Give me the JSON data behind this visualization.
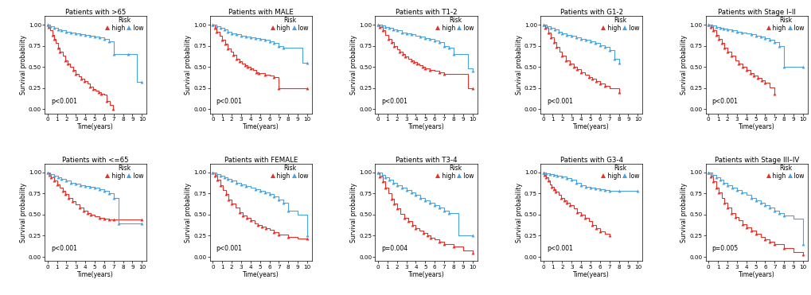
{
  "panels": [
    {
      "title": "Patients with >65",
      "pvalue": "p<0.001",
      "row": 0,
      "col": 0
    },
    {
      "title": "Patients with MALE",
      "pvalue": "p<0.001",
      "row": 0,
      "col": 1
    },
    {
      "title": "Patients with T1-2",
      "pvalue": "p<0.001",
      "row": 0,
      "col": 2
    },
    {
      "title": "Patients with G1-2",
      "pvalue": "p<0.001",
      "row": 0,
      "col": 3
    },
    {
      "title": "Patients with Stage I–II",
      "pvalue": "p<0.001",
      "row": 0,
      "col": 4
    },
    {
      "title": "Patients with <=65",
      "pvalue": "p<0.001",
      "row": 1,
      "col": 0
    },
    {
      "title": "Patients with FEMALE",
      "pvalue": "p<0.001",
      "row": 1,
      "col": 1
    },
    {
      "title": "Patients with T3-4",
      "pvalue": "p=0.004",
      "row": 1,
      "col": 2
    },
    {
      "title": "Patients with G3-4",
      "pvalue": "p<0.001",
      "row": 1,
      "col": 3
    },
    {
      "title": "Patients with Stage III–IV",
      "pvalue": "p=0.005",
      "row": 1,
      "col": 4
    }
  ],
  "color_high": "#E8302A",
  "color_low": "#4AA3DF",
  "legend_label_high": "high",
  "legend_label_low": "low",
  "legend_prefix": "Risk",
  "ylabel": "Survival probability",
  "xlabel": "Time(years)",
  "yticks": [
    0.0,
    0.25,
    0.5,
    0.75,
    1.0
  ],
  "xticks": [
    0,
    1,
    2,
    3,
    4,
    5,
    6,
    7,
    8,
    9,
    10
  ],
  "xlim": [
    -0.3,
    10.5
  ],
  "ylim": [
    -0.05,
    1.1
  ],
  "curves": {
    "0_0": {
      "high_x": [
        0,
        0.15,
        0.3,
        0.5,
        0.7,
        0.9,
        1.1,
        1.3,
        1.6,
        1.9,
        2.1,
        2.4,
        2.7,
        3.0,
        3.3,
        3.6,
        3.9,
        4.2,
        4.5,
        4.8,
        5.1,
        5.4,
        5.7,
        6.0,
        6.3,
        6.6,
        6.9
      ],
      "high_y": [
        1.0,
        0.97,
        0.93,
        0.88,
        0.83,
        0.78,
        0.73,
        0.68,
        0.63,
        0.58,
        0.54,
        0.5,
        0.46,
        0.42,
        0.39,
        0.36,
        0.33,
        0.3,
        0.27,
        0.24,
        0.22,
        0.2,
        0.18,
        0.17,
        0.1,
        0.05,
        0.0
      ],
      "low_x": [
        0,
        0.3,
        0.7,
        1.1,
        1.5,
        2.0,
        2.5,
        3.0,
        3.5,
        4.0,
        4.5,
        5.0,
        5.5,
        6.0,
        6.5,
        7.0,
        8.5,
        9.5,
        10.0
      ],
      "low_y": [
        1.0,
        0.98,
        0.96,
        0.94,
        0.93,
        0.92,
        0.91,
        0.9,
        0.89,
        0.88,
        0.87,
        0.86,
        0.85,
        0.83,
        0.8,
        0.65,
        0.65,
        0.32,
        0.32
      ]
    },
    "0_1": {
      "high_x": [
        0,
        0.2,
        0.4,
        0.7,
        1.0,
        1.3,
        1.6,
        1.9,
        2.2,
        2.5,
        2.8,
        3.1,
        3.4,
        3.7,
        4.0,
        4.3,
        4.6,
        4.9,
        5.5,
        6.0,
        6.5,
        7.0,
        9.5,
        10.0
      ],
      "high_y": [
        1.0,
        0.96,
        0.92,
        0.87,
        0.82,
        0.77,
        0.72,
        0.68,
        0.64,
        0.6,
        0.57,
        0.54,
        0.52,
        0.5,
        0.48,
        0.46,
        0.44,
        0.43,
        0.41,
        0.4,
        0.38,
        0.25,
        0.25,
        0.25
      ],
      "low_x": [
        0,
        0.4,
        0.8,
        1.2,
        1.6,
        2.0,
        2.5,
        3.0,
        3.5,
        4.0,
        4.5,
        5.0,
        5.5,
        6.0,
        6.5,
        7.0,
        7.5,
        9.5,
        10.0
      ],
      "low_y": [
        1.0,
        0.98,
        0.96,
        0.94,
        0.92,
        0.9,
        0.89,
        0.87,
        0.86,
        0.85,
        0.84,
        0.83,
        0.82,
        0.8,
        0.78,
        0.75,
        0.73,
        0.55,
        0.55
      ]
    },
    "0_2": {
      "high_x": [
        0,
        0.2,
        0.5,
        0.8,
        1.1,
        1.4,
        1.7,
        2.0,
        2.3,
        2.6,
        2.9,
        3.2,
        3.5,
        3.8,
        4.1,
        4.4,
        4.7,
        5.0,
        5.5,
        6.0,
        6.5,
        7.0,
        9.5,
        10.0
      ],
      "high_y": [
        1.0,
        0.97,
        0.93,
        0.88,
        0.83,
        0.79,
        0.75,
        0.71,
        0.68,
        0.65,
        0.62,
        0.6,
        0.58,
        0.56,
        0.54,
        0.52,
        0.5,
        0.48,
        0.46,
        0.45,
        0.44,
        0.42,
        0.25,
        0.25
      ],
      "low_x": [
        0,
        0.4,
        0.8,
        1.2,
        1.6,
        2.0,
        2.5,
        3.0,
        3.5,
        4.0,
        4.5,
        5.0,
        5.5,
        6.0,
        6.5,
        7.0,
        7.5,
        8.0,
        9.5,
        10.0
      ],
      "low_y": [
        1.0,
        0.99,
        0.97,
        0.96,
        0.94,
        0.93,
        0.91,
        0.9,
        0.89,
        0.87,
        0.86,
        0.84,
        0.83,
        0.81,
        0.79,
        0.75,
        0.73,
        0.65,
        0.48,
        0.45
      ]
    },
    "0_3": {
      "high_x": [
        0,
        0.2,
        0.5,
        0.8,
        1.1,
        1.4,
        1.7,
        2.0,
        2.4,
        2.8,
        3.2,
        3.6,
        4.0,
        4.4,
        4.8,
        5.2,
        5.6,
        6.0,
        6.5,
        7.0,
        8.0
      ],
      "high_y": [
        1.0,
        0.96,
        0.91,
        0.85,
        0.79,
        0.74,
        0.68,
        0.63,
        0.58,
        0.54,
        0.5,
        0.47,
        0.44,
        0.41,
        0.38,
        0.36,
        0.33,
        0.3,
        0.28,
        0.25,
        0.2
      ],
      "low_x": [
        0,
        0.4,
        0.8,
        1.2,
        1.6,
        2.0,
        2.5,
        3.0,
        3.5,
        4.0,
        4.5,
        5.0,
        5.5,
        6.0,
        6.5,
        7.0,
        7.5,
        8.0
      ],
      "low_y": [
        1.0,
        0.98,
        0.96,
        0.94,
        0.92,
        0.9,
        0.88,
        0.87,
        0.85,
        0.83,
        0.82,
        0.8,
        0.78,
        0.76,
        0.74,
        0.7,
        0.6,
        0.55
      ]
    },
    "0_4": {
      "high_x": [
        0,
        0.2,
        0.5,
        0.8,
        1.1,
        1.4,
        1.7,
        2.0,
        2.4,
        2.8,
        3.2,
        3.6,
        4.0,
        4.4,
        4.8,
        5.2,
        5.6,
        6.0,
        6.5,
        7.0
      ],
      "high_y": [
        1.0,
        0.97,
        0.93,
        0.88,
        0.83,
        0.78,
        0.73,
        0.68,
        0.63,
        0.58,
        0.54,
        0.5,
        0.46,
        0.43,
        0.4,
        0.37,
        0.34,
        0.31,
        0.26,
        0.18
      ],
      "low_x": [
        0,
        0.4,
        0.8,
        1.2,
        1.6,
        2.0,
        2.5,
        3.0,
        3.5,
        4.0,
        4.5,
        5.0,
        5.5,
        6.0,
        6.5,
        7.0,
        7.5,
        8.0,
        9.5,
        10.0
      ],
      "low_y": [
        1.0,
        0.99,
        0.97,
        0.96,
        0.95,
        0.94,
        0.93,
        0.92,
        0.91,
        0.9,
        0.89,
        0.87,
        0.86,
        0.84,
        0.82,
        0.79,
        0.75,
        0.5,
        0.5,
        0.5
      ]
    },
    "1_0": {
      "high_x": [
        0,
        0.2,
        0.4,
        0.7,
        1.0,
        1.3,
        1.6,
        1.9,
        2.2,
        2.6,
        3.0,
        3.4,
        3.8,
        4.2,
        4.6,
        5.0,
        5.5,
        6.0,
        6.5,
        7.0,
        7.5,
        10.0
      ],
      "high_y": [
        1.0,
        0.97,
        0.94,
        0.9,
        0.86,
        0.82,
        0.78,
        0.74,
        0.7,
        0.66,
        0.62,
        0.58,
        0.55,
        0.52,
        0.5,
        0.48,
        0.46,
        0.45,
        0.44,
        0.44,
        0.44,
        0.44
      ],
      "low_x": [
        0,
        0.3,
        0.7,
        1.1,
        1.5,
        2.0,
        2.5,
        3.0,
        3.5,
        4.0,
        4.5,
        5.0,
        5.5,
        6.0,
        6.5,
        7.0,
        7.5,
        10.0
      ],
      "low_y": [
        1.0,
        0.98,
        0.96,
        0.94,
        0.92,
        0.9,
        0.88,
        0.87,
        0.85,
        0.84,
        0.83,
        0.82,
        0.8,
        0.78,
        0.75,
        0.7,
        0.4,
        0.4
      ]
    },
    "1_1": {
      "high_x": [
        0,
        0.2,
        0.5,
        0.8,
        1.1,
        1.4,
        1.7,
        2.0,
        2.4,
        2.8,
        3.2,
        3.6,
        4.0,
        4.4,
        4.8,
        5.2,
        5.6,
        6.0,
        6.5,
        7.0,
        8.0,
        9.0,
        10.0
      ],
      "high_y": [
        1.0,
        0.96,
        0.91,
        0.85,
        0.79,
        0.74,
        0.68,
        0.63,
        0.58,
        0.53,
        0.49,
        0.46,
        0.43,
        0.4,
        0.38,
        0.36,
        0.34,
        0.32,
        0.29,
        0.26,
        0.24,
        0.22,
        0.22
      ],
      "low_x": [
        0,
        0.4,
        0.8,
        1.2,
        1.6,
        2.0,
        2.5,
        3.0,
        3.5,
        4.0,
        4.5,
        5.0,
        5.5,
        6.0,
        6.5,
        7.0,
        7.5,
        8.0,
        9.0,
        10.0
      ],
      "low_y": [
        1.0,
        0.98,
        0.96,
        0.94,
        0.92,
        0.9,
        0.88,
        0.86,
        0.84,
        0.82,
        0.8,
        0.78,
        0.76,
        0.74,
        0.72,
        0.68,
        0.64,
        0.55,
        0.5,
        0.25
      ]
    },
    "1_2": {
      "high_x": [
        0,
        0.2,
        0.5,
        0.8,
        1.1,
        1.4,
        1.7,
        2.0,
        2.4,
        2.8,
        3.2,
        3.6,
        4.0,
        4.4,
        4.8,
        5.2,
        5.6,
        6.0,
        6.5,
        7.0,
        8.0,
        9.0,
        10.0
      ],
      "high_y": [
        1.0,
        0.95,
        0.89,
        0.82,
        0.75,
        0.69,
        0.63,
        0.57,
        0.51,
        0.46,
        0.42,
        0.38,
        0.34,
        0.31,
        0.28,
        0.25,
        0.23,
        0.21,
        0.18,
        0.15,
        0.12,
        0.08,
        0.05
      ],
      "low_x": [
        0,
        0.4,
        0.8,
        1.2,
        1.6,
        2.0,
        2.5,
        3.0,
        3.5,
        4.0,
        4.5,
        5.0,
        5.5,
        6.0,
        6.5,
        7.0,
        7.5,
        8.5,
        10.0
      ],
      "low_y": [
        1.0,
        0.97,
        0.94,
        0.91,
        0.88,
        0.85,
        0.82,
        0.79,
        0.76,
        0.73,
        0.7,
        0.67,
        0.64,
        0.61,
        0.58,
        0.55,
        0.52,
        0.25,
        0.25
      ]
    },
    "1_3": {
      "high_x": [
        0,
        0.15,
        0.3,
        0.5,
        0.7,
        0.9,
        1.1,
        1.3,
        1.6,
        1.9,
        2.2,
        2.5,
        2.8,
        3.2,
        3.6,
        4.0,
        4.4,
        4.8,
        5.2,
        5.6,
        6.0,
        6.5,
        7.0
      ],
      "high_y": [
        1.0,
        0.97,
        0.94,
        0.9,
        0.86,
        0.83,
        0.8,
        0.77,
        0.73,
        0.7,
        0.67,
        0.64,
        0.61,
        0.57,
        0.53,
        0.5,
        0.46,
        0.42,
        0.38,
        0.34,
        0.3,
        0.27,
        0.25
      ],
      "low_x": [
        0,
        0.3,
        0.7,
        1.1,
        1.5,
        2.0,
        2.5,
        3.0,
        3.5,
        4.0,
        4.5,
        5.0,
        5.5,
        6.0,
        6.5,
        7.0,
        8.0,
        9.0,
        10.0
      ],
      "low_y": [
        1.0,
        0.99,
        0.98,
        0.97,
        0.96,
        0.95,
        0.93,
        0.91,
        0.88,
        0.85,
        0.83,
        0.82,
        0.81,
        0.8,
        0.79,
        0.78,
        0.78,
        0.78,
        0.78
      ]
    },
    "1_4": {
      "high_x": [
        0,
        0.2,
        0.5,
        0.8,
        1.1,
        1.4,
        1.7,
        2.0,
        2.4,
        2.8,
        3.2,
        3.6,
        4.0,
        4.5,
        5.0,
        5.5,
        6.0,
        6.5,
        7.0,
        8.0,
        9.0,
        10.0
      ],
      "high_y": [
        1.0,
        0.95,
        0.89,
        0.82,
        0.76,
        0.7,
        0.64,
        0.58,
        0.52,
        0.47,
        0.43,
        0.39,
        0.35,
        0.31,
        0.27,
        0.24,
        0.21,
        0.18,
        0.15,
        0.1,
        0.06,
        0.03
      ],
      "low_x": [
        0,
        0.4,
        0.8,
        1.2,
        1.6,
        2.0,
        2.5,
        3.0,
        3.5,
        4.0,
        4.5,
        5.0,
        5.5,
        6.0,
        6.5,
        7.0,
        7.5,
        8.0,
        9.0,
        10.0
      ],
      "low_y": [
        1.0,
        0.97,
        0.94,
        0.91,
        0.88,
        0.85,
        0.82,
        0.79,
        0.76,
        0.73,
        0.7,
        0.67,
        0.64,
        0.61,
        0.58,
        0.55,
        0.52,
        0.49,
        0.45,
        0.15
      ]
    }
  }
}
